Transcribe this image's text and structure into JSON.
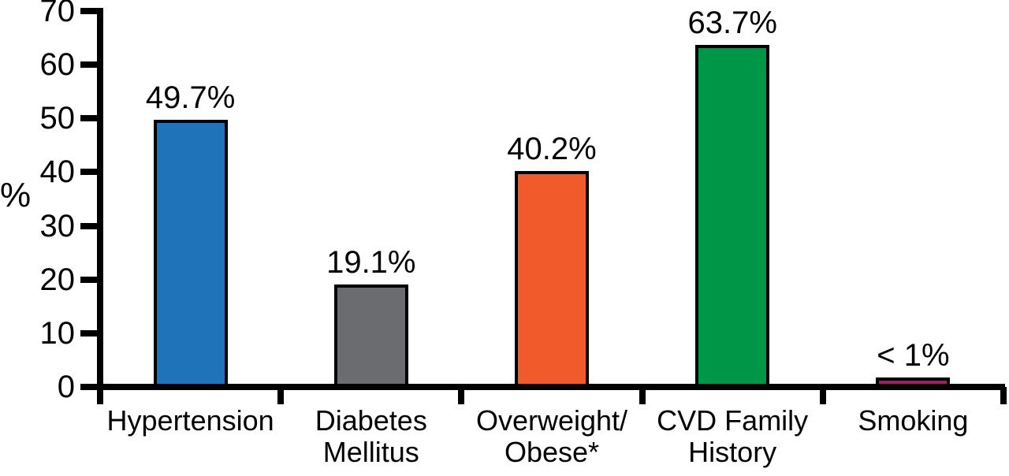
{
  "figure": {
    "background_color": "#ffffff",
    "text_color": "#000000",
    "axis_color": "#000000"
  },
  "chart_data": {
    "type": "bar",
    "title": "",
    "xlabel": "",
    "ylabel": "%",
    "ylim": [
      0,
      70
    ],
    "yticks": [
      0,
      10,
      20,
      30,
      40,
      50,
      60,
      70
    ],
    "grid": false,
    "legend": false,
    "categories": [
      "Hypertension",
      "Diabetes Mellitus",
      "Overweight/Obese*",
      "CVD Family History",
      "Smoking"
    ],
    "category_label_lines": [
      [
        "Hypertension"
      ],
      [
        "Diabetes",
        "Mellitus"
      ],
      [
        "Overweight/",
        "Obese*"
      ],
      [
        "CVD Family",
        "History"
      ],
      [
        "Smoking"
      ]
    ],
    "values": [
      49.7,
      19.1,
      40.2,
      63.7,
      0.9
    ],
    "value_labels": [
      "49.7%",
      "19.1%",
      "40.2%",
      "63.7%",
      "< 1%"
    ],
    "bar_colors": [
      "#1f73b8",
      "#6b6c70",
      "#f15a2b",
      "#009648",
      "#9b2166"
    ],
    "bar_edge_color": "#000000"
  }
}
